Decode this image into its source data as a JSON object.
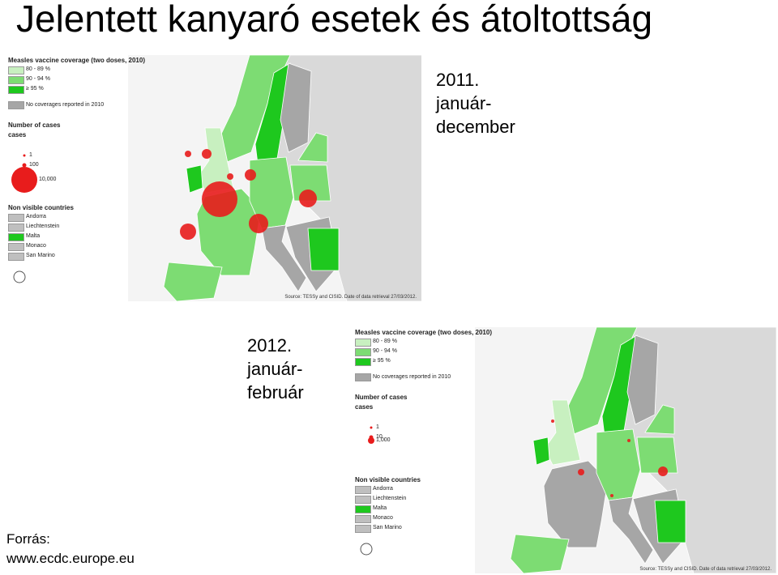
{
  "title": "Jelentett kanyaró esetek és átoltottság",
  "maps": [
    {
      "period": [
        "2011.",
        "január-",
        "december"
      ],
      "legend": {
        "coverage_title": "Measles vaccine coverage (two doses, 2010)",
        "coverage": [
          "80 - 89 %",
          "90 - 94 %",
          "≥ 95 %"
        ],
        "no_coverage": "No coverages reported in 2010",
        "cases_title": "Number of cases",
        "cases_sub": "cases",
        "sizes": [
          "1",
          "100",
          "10,000"
        ],
        "non_visible_title": "Non visible countries",
        "non_visible": [
          "Andorra",
          "Liechtenstein",
          "Malta",
          "Monaco",
          "San Marino"
        ]
      },
      "source": "Source: TESSy and CISID. Date of data retrieval 27/03/2012."
    },
    {
      "period": [
        "2012.",
        "január-",
        "február"
      ],
      "legend": {
        "coverage_title": "Measles vaccine coverage (two doses, 2010)",
        "coverage": [
          "80 - 89 %",
          "90 - 94 %",
          "≥ 95 %"
        ],
        "no_coverage": "No coverages reported in 2010",
        "cases_title": "Number of cases",
        "cases_sub": "cases",
        "sizes": [
          "1",
          "10",
          "1,000"
        ],
        "non_visible_title": "Non visible countries",
        "non_visible": [
          "Andorra",
          "Liechtenstein",
          "Malta",
          "Monaco",
          "San Marino"
        ]
      },
      "source": "Source: TESSy and CISID. Date of data retrieval 27/03/2012."
    }
  ],
  "footer": [
    "Forrás:",
    "www.ecdc.europe.eu"
  ]
}
